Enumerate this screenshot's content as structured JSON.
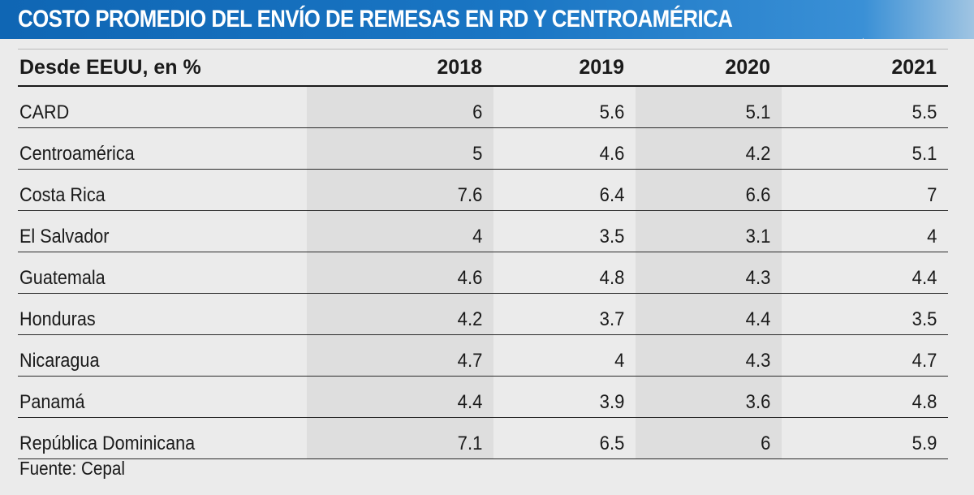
{
  "title": "COSTO PROMEDIO DEL ENVÍO DE REMESAS EN RD Y CENTROAMÉRICA",
  "source": "Fuente: Cepal",
  "chart_data": {
    "type": "table",
    "row_header": "Desde EEUU, en %",
    "columns": [
      "2018",
      "2019",
      "2020",
      "2021"
    ],
    "rows": [
      {
        "label": "CARD",
        "values": [
          "6",
          "5.6",
          "5.1",
          "5.5"
        ]
      },
      {
        "label": "Centroamérica",
        "values": [
          "5",
          "4.6",
          "4.2",
          "5.1"
        ]
      },
      {
        "label": "Costa Rica",
        "values": [
          "7.6",
          "6.4",
          "6.6",
          "7"
        ]
      },
      {
        "label": "El Salvador",
        "values": [
          "4",
          "3.5",
          "3.1",
          "4"
        ]
      },
      {
        "label": "Guatemala",
        "values": [
          "4.6",
          "4.8",
          "4.3",
          "4.4"
        ]
      },
      {
        "label": "Honduras",
        "values": [
          "4.2",
          "3.7",
          "4.4",
          "3.5"
        ]
      },
      {
        "label": "Nicaragua",
        "values": [
          "4.7",
          "4",
          "4.3",
          "4.7"
        ]
      },
      {
        "label": "Panamá",
        "values": [
          "4.4",
          "3.9",
          "3.6",
          "4.8"
        ]
      },
      {
        "label": "República Dominicana",
        "values": [
          "7.1",
          "6.5",
          "6",
          "5.9"
        ]
      }
    ]
  },
  "colors": {
    "title_bar": "#1a76c4",
    "background": "#ebebeb",
    "shaded_column": "#dedede"
  }
}
